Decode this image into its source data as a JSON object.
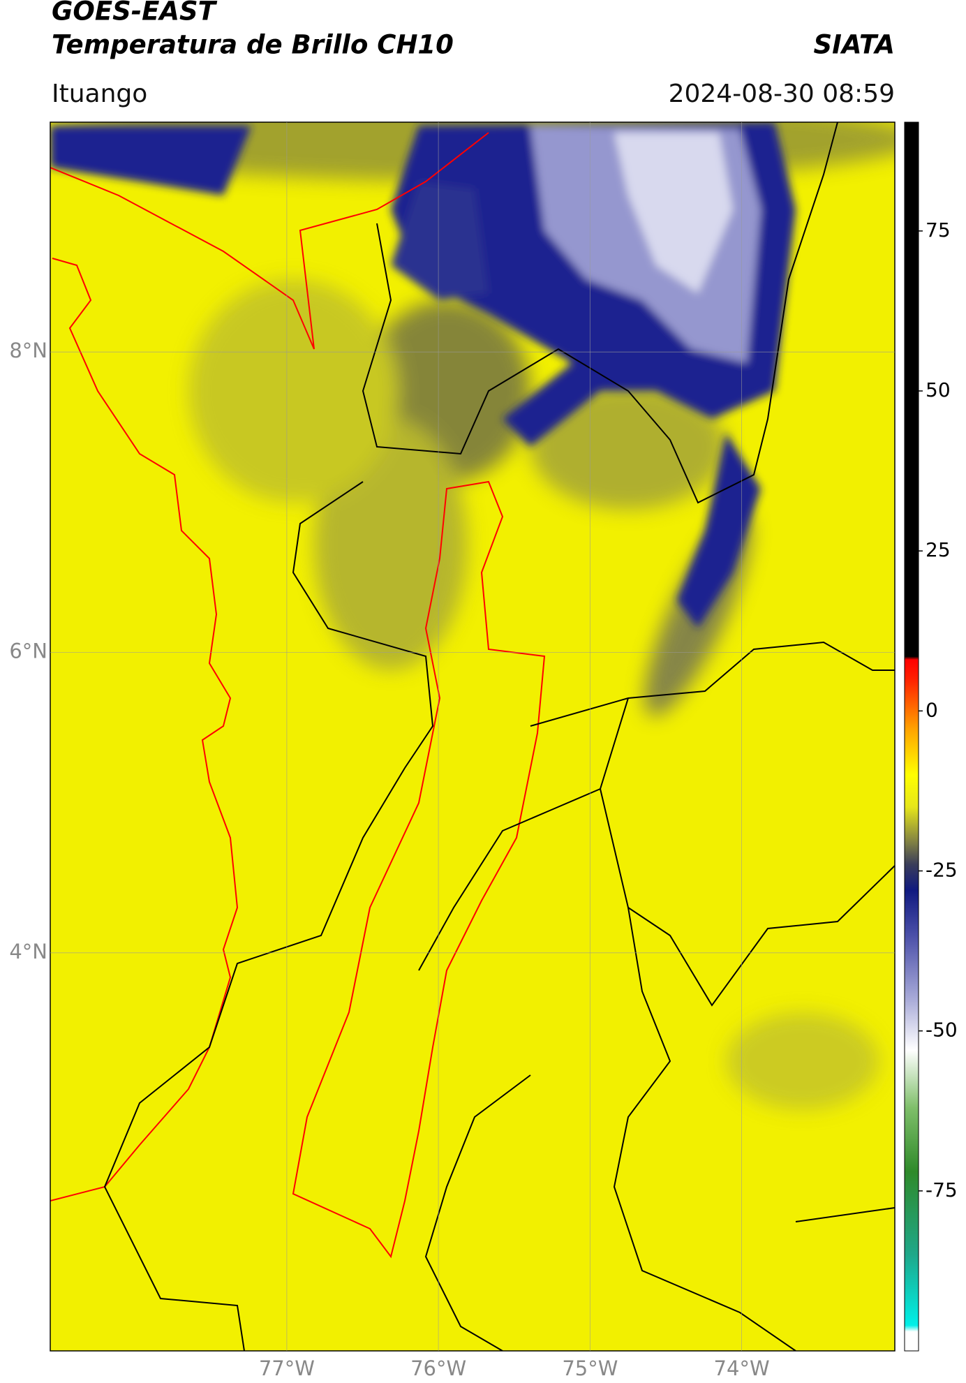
{
  "header": {
    "title": "GOES-EAST",
    "subtitle": "Temperatura de Brillo CH10",
    "source": "SIATA",
    "location": "Ituango",
    "datetime": "2024-08-30 08:59"
  },
  "map": {
    "xlim": [
      -78.56,
      -72.99
    ],
    "ylim": [
      1.35,
      9.53
    ],
    "xticks": [
      {
        "value": -77,
        "label": "77°W"
      },
      {
        "value": -76,
        "label": "76°W"
      },
      {
        "value": -75,
        "label": "75°W"
      },
      {
        "value": -74,
        "label": "74°W"
      }
    ],
    "yticks": [
      {
        "value": 4,
        "label": "4°N"
      },
      {
        "value": 6,
        "label": "6°N"
      },
      {
        "value": 8,
        "label": "8°N"
      }
    ],
    "grid": true
  },
  "colorbar": {
    "lim": [
      -100,
      92
    ],
    "ticks": [
      -75,
      -50,
      -25,
      0,
      25,
      50,
      75
    ],
    "colormap": [
      {
        "value": -100,
        "color": "#ffffff"
      },
      {
        "value": -97,
        "color": "#ffffff"
      },
      {
        "value": -96,
        "color": "#00f0e8"
      },
      {
        "value": -85,
        "color": "#1fa88a"
      },
      {
        "value": -72,
        "color": "#2f8a2a"
      },
      {
        "value": -62,
        "color": "#7fbf6a"
      },
      {
        "value": -53,
        "color": "#ffffff"
      },
      {
        "value": -45,
        "color": "#a8aad8"
      },
      {
        "value": -35,
        "color": "#4a4fa8"
      },
      {
        "value": -28,
        "color": "#101a80"
      },
      {
        "value": -24,
        "color": "#3a3d5a"
      },
      {
        "value": -20,
        "color": "#8a8a40"
      },
      {
        "value": -15,
        "color": "#e6e61a"
      },
      {
        "value": -10,
        "color": "#ffff00"
      },
      {
        "value": -3,
        "color": "#ffa500"
      },
      {
        "value": 5,
        "color": "#ff2000"
      },
      {
        "value": 8,
        "color": "#ff0000"
      },
      {
        "value": 8.5,
        "color": "#000000"
      },
      {
        "value": 92,
        "color": "#000000"
      }
    ]
  }
}
